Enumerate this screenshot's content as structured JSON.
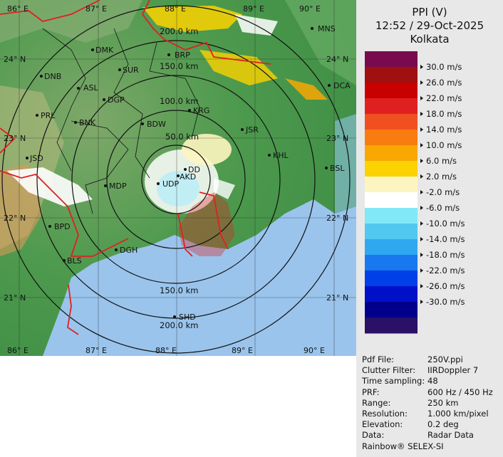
{
  "header": {
    "product": "PPI (V)",
    "datetime": "12:52 / 29-Oct-2025",
    "station": "Kolkata"
  },
  "legend": {
    "unit": "m/s",
    "labels": [
      "30.0 m/s",
      "26.0 m/s",
      "22.0 m/s",
      "18.0 m/s",
      "14.0 m/s",
      "10.0 m/s",
      "6.0 m/s",
      "2.0 m/s",
      "-2.0 m/s",
      "-6.0 m/s",
      "-10.0 m/s",
      "-14.0 m/s",
      "-18.0 m/s",
      "-22.0 m/s",
      "-26.0 m/s",
      "-30.0 m/s"
    ],
    "colors": [
      "#7a0a4e",
      "#a01010",
      "#c80000",
      "#e02020",
      "#f05020",
      "#f87c10",
      "#f8a800",
      "#fcd200",
      "#fdf5c0",
      "#ffffff",
      "#80e8f8",
      "#50c8f0",
      "#30a8f0",
      "#1878f0",
      "#0040e8",
      "#0010c8",
      "#00008c",
      "#2a1066"
    ]
  },
  "map": {
    "lat_labels_left": [
      "24° N",
      "23° N",
      "22° N",
      "21° N"
    ],
    "lat_labels_right": [
      "24° N",
      "23° N",
      "22° N",
      "21° N"
    ],
    "lon_labels_top": [
      "86° E",
      "87° E",
      "88° E",
      "89° E",
      "90° E"
    ],
    "lon_labels_bottom": [
      "86° E",
      "87° E",
      "88° E",
      "89° E",
      "90° E"
    ],
    "range_labels": [
      "50.0 km",
      "100.0 km",
      "150.0 km",
      "200.0 km"
    ],
    "range_labels_bottom": [
      "150.0 km",
      "200.0 km"
    ],
    "cities": [
      "MNS",
      "DMK",
      "BRP",
      "SUR",
      "DNB",
      "ASL",
      "DGP",
      "DCA",
      "PRL",
      "BNK",
      "BDW",
      "KRG",
      "JSR",
      "KHL",
      "JSD",
      "BSL",
      "MDP",
      "DD",
      "AKD",
      "UDP",
      "BPD",
      "DGH",
      "BLS",
      "SHD"
    ],
    "colors": {
      "land": "#5aa05a",
      "sea": "#9ac4ec",
      "border": "#e02020",
      "district": "#111111"
    }
  },
  "info": [
    {
      "key": "Pdf File:",
      "value": "250V.ppi"
    },
    {
      "key": "Clutter Filter:",
      "value": "IIRDoppler 7"
    },
    {
      "key": "Time sampling:",
      "value": "48"
    },
    {
      "key": "PRF:",
      "value": "600 Hz / 450 Hz"
    },
    {
      "key": "Range:",
      "value": "250 km"
    },
    {
      "key": "Resolution:",
      "value": "1.000 km/pixel"
    },
    {
      "key": "Elevation:",
      "value": "0.2 deg"
    },
    {
      "key": "Data:",
      "value": "Radar Data"
    }
  ],
  "footer": "Rainbow® SELEX-SI"
}
